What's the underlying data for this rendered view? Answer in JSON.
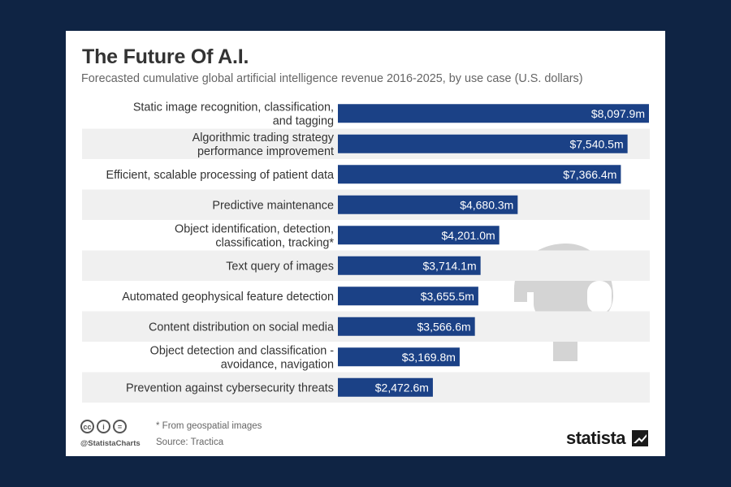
{
  "title": "The Future Of A.I.",
  "subtitle": "Forecasted cumulative global artificial intelligence revenue 2016-2025, by use case (U.S. dollars)",
  "footnote": "* From geospatial images",
  "source": "Source: Tractica",
  "handle": "@StatistaCharts",
  "brand": "statista",
  "license_icons": [
    "cc",
    "i",
    "="
  ],
  "colors": {
    "bar": "#1b4186",
    "stripe": "#f0f0f0",
    "background": "#0f2444",
    "watermark": "#d4d4d4"
  },
  "chart_data": {
    "type": "bar",
    "orientation": "horizontal",
    "categories": [
      [
        "Static image recognition, classification,",
        "and tagging"
      ],
      [
        "Algorithmic trading strategy",
        "performance improvement"
      ],
      [
        "Efficient, scalable processing of patient data"
      ],
      [
        "Predictive maintenance"
      ],
      [
        "Object identification, detection,",
        "classification, tracking*"
      ],
      [
        "Text query of images"
      ],
      [
        "Automated geophysical feature detection"
      ],
      [
        "Content distribution on social media"
      ],
      [
        "Object detection and classification -",
        "avoidance, navigation"
      ],
      [
        "Prevention against cybersecurity threats"
      ]
    ],
    "values": [
      8097.9,
      7540.5,
      7366.4,
      4680.3,
      4201.0,
      3714.1,
      3655.5,
      3566.6,
      3169.8,
      2472.6
    ],
    "value_labels": [
      "$8,097.9m",
      "$7,540.5m",
      "$7,366.4m",
      "$4,680.3m",
      "$4,201.0m",
      "$3,714.1m",
      "$3,655.5m",
      "$3,566.6m",
      "$3,169.8m",
      "$2,472.6m"
    ],
    "xlim": [
      0,
      8097.9
    ],
    "grid": false,
    "legend": "none",
    "alternating_stripes": true
  }
}
